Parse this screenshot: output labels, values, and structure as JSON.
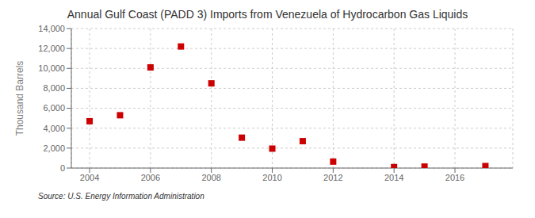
{
  "chart_data": {
    "type": "scatter",
    "title": "Annual Gulf Coast (PADD 3) Imports from Venezuela of Hydrocarbon Gas Liquids",
    "ylabel": "Thousand Barrels",
    "annotation": "Source: U.S. Energy Information Administration",
    "x": [
      2004,
      2005,
      2006,
      2007,
      2008,
      2009,
      2010,
      2011,
      2012,
      2014,
      2015,
      2017
    ],
    "values": [
      4700,
      5300,
      10100,
      12200,
      8500,
      3050,
      1950,
      2700,
      650,
      100,
      150,
      200
    ],
    "color": "#cc0000",
    "marker": "square",
    "xlim": [
      2003.4,
      2017.9
    ],
    "ylim": [
      0,
      14000
    ],
    "xticks": [
      2004,
      2006,
      2008,
      2010,
      2012,
      2014,
      2016
    ],
    "yticks": [
      0,
      {
        "value": 2000,
        "label": "2,000"
      },
      {
        "value": 4000,
        "label": "4,000"
      },
      {
        "value": 6000,
        "label": "6,000"
      },
      {
        "value": 8000,
        "label": "8,000"
      },
      {
        "value": 10000,
        "label": "10,000"
      },
      {
        "value": 12000,
        "label": "12,000"
      },
      {
        "value": 14000,
        "label": "14,000"
      }
    ],
    "grid": true
  }
}
